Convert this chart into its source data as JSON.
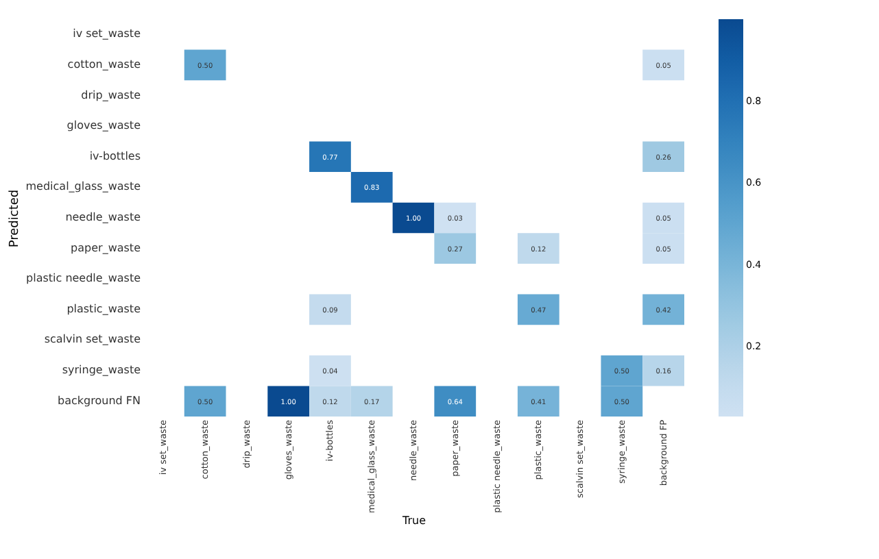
{
  "chart_data": {
    "type": "heatmap",
    "xlabel": "True",
    "ylabel": "Predicted",
    "categories": [
      "iv set_waste",
      "cotton_waste",
      "drip_waste",
      "gloves_waste",
      "iv-bottles",
      "medical_glass_waste",
      "needle_waste",
      "paper_waste",
      "plastic needle_waste",
      "plastic_waste",
      "scalvin set_waste",
      "syringe_waste",
      "background FP"
    ],
    "y_categories": [
      "iv set_waste",
      "cotton_waste",
      "drip_waste",
      "gloves_waste",
      "iv-bottles",
      "medical_glass_waste",
      "needle_waste",
      "paper_waste",
      "plastic needle_waste",
      "plastic_waste",
      "scalvin set_waste",
      "syringe_waste",
      "background FN"
    ],
    "cells": [
      [
        null,
        null,
        null,
        null,
        null,
        null,
        null,
        null,
        null,
        null,
        null,
        null,
        null
      ],
      [
        null,
        0.5,
        null,
        null,
        null,
        null,
        null,
        null,
        null,
        null,
        null,
        null,
        0.05
      ],
      [
        null,
        null,
        null,
        null,
        null,
        null,
        null,
        null,
        null,
        null,
        null,
        null,
        null
      ],
      [
        null,
        null,
        null,
        null,
        null,
        null,
        null,
        null,
        null,
        null,
        null,
        null,
        null
      ],
      [
        null,
        null,
        null,
        null,
        0.77,
        null,
        null,
        null,
        null,
        null,
        null,
        null,
        0.26
      ],
      [
        null,
        null,
        null,
        null,
        null,
        0.83,
        null,
        null,
        null,
        null,
        null,
        null,
        null
      ],
      [
        null,
        null,
        null,
        null,
        null,
        null,
        1.0,
        0.03,
        null,
        null,
        null,
        null,
        0.05
      ],
      [
        null,
        null,
        null,
        null,
        null,
        null,
        null,
        0.27,
        null,
        0.12,
        null,
        null,
        0.05
      ],
      [
        null,
        null,
        null,
        null,
        null,
        null,
        null,
        null,
        null,
        null,
        null,
        null,
        null
      ],
      [
        null,
        null,
        null,
        null,
        0.09,
        null,
        null,
        null,
        null,
        0.47,
        null,
        null,
        0.42
      ],
      [
        null,
        null,
        null,
        null,
        null,
        null,
        null,
        null,
        null,
        null,
        null,
        null,
        null
      ],
      [
        null,
        null,
        null,
        null,
        0.04,
        null,
        null,
        null,
        null,
        null,
        null,
        0.5,
        0.16
      ],
      [
        null,
        0.5,
        null,
        1.0,
        0.12,
        0.17,
        null,
        0.64,
        null,
        0.41,
        null,
        0.5,
        null
      ]
    ],
    "cell_labels": [
      [
        null,
        null,
        null,
        null,
        null,
        null,
        null,
        null,
        null,
        null,
        null,
        null,
        null
      ],
      [
        null,
        "0.50",
        null,
        null,
        null,
        null,
        null,
        null,
        null,
        null,
        null,
        null,
        "0.05"
      ],
      [
        null,
        null,
        null,
        null,
        null,
        null,
        null,
        null,
        null,
        null,
        null,
        null,
        null
      ],
      [
        null,
        null,
        null,
        null,
        null,
        null,
        null,
        null,
        null,
        null,
        null,
        null,
        null
      ],
      [
        null,
        null,
        null,
        null,
        "0.77",
        null,
        null,
        null,
        null,
        null,
        null,
        null,
        "0.26"
      ],
      [
        null,
        null,
        null,
        null,
        null,
        "0.83",
        null,
        null,
        null,
        null,
        null,
        null,
        null
      ],
      [
        null,
        null,
        null,
        null,
        null,
        null,
        "1.00",
        "0.03",
        null,
        null,
        null,
        null,
        "0.05"
      ],
      [
        null,
        null,
        null,
        null,
        null,
        null,
        null,
        "0.27",
        null,
        "0.12",
        null,
        null,
        "0.05"
      ],
      [
        null,
        null,
        null,
        null,
        null,
        null,
        null,
        null,
        null,
        null,
        null,
        null,
        null
      ],
      [
        null,
        null,
        null,
        null,
        "0.09",
        null,
        null,
        null,
        null,
        "0.47",
        null,
        null,
        "0.42"
      ],
      [
        null,
        null,
        null,
        null,
        null,
        null,
        null,
        null,
        null,
        null,
        null,
        null,
        null
      ],
      [
        null,
        null,
        null,
        null,
        "0.04",
        null,
        null,
        null,
        null,
        null,
        null,
        "0.50",
        "0.16"
      ],
      [
        null,
        "0.50",
        null,
        "1.00",
        "0.12",
        "0.17",
        null,
        "0.64",
        null,
        "0.41",
        null,
        "0.50",
        null
      ]
    ],
    "clim": [
      0.03,
      1.0
    ],
    "cticks": [
      0.2,
      0.4,
      0.6,
      0.8
    ]
  }
}
